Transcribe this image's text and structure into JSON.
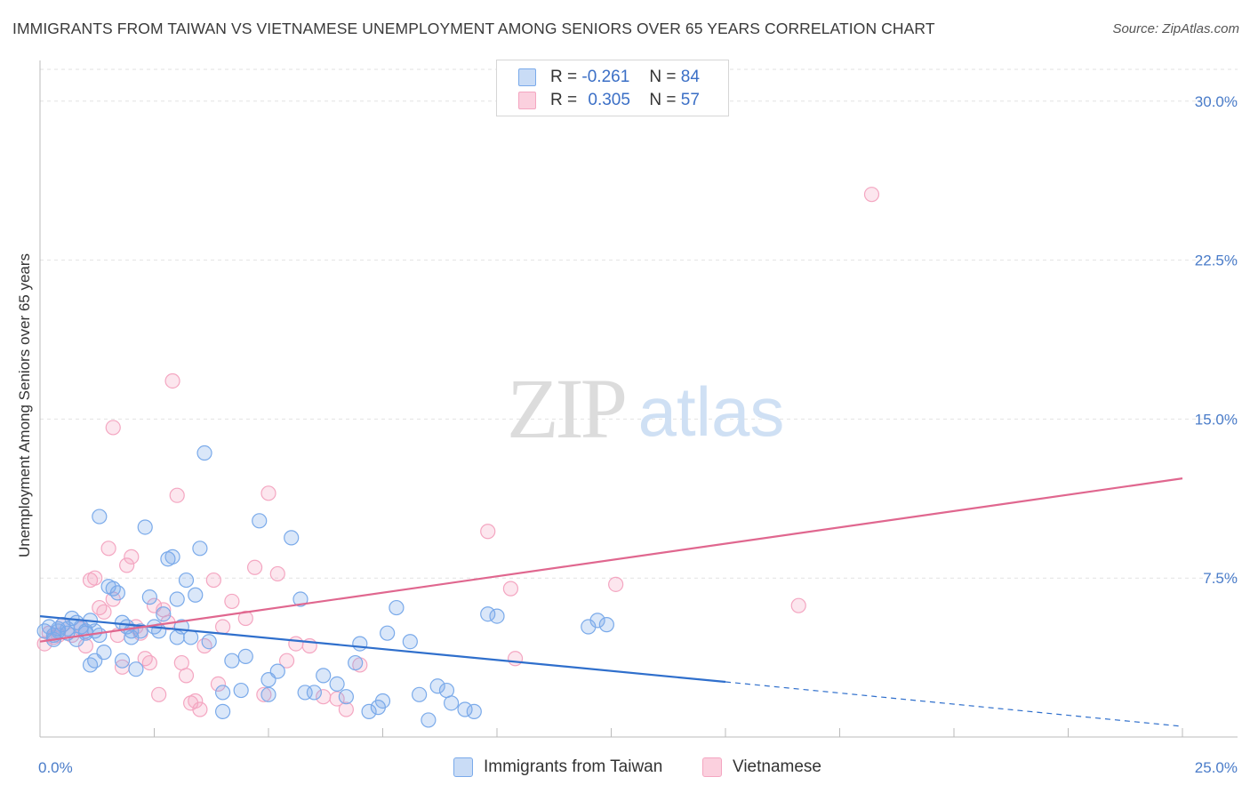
{
  "chart_data": {
    "type": "scatter",
    "title": "IMMIGRANTS FROM TAIWAN VS VIETNAMESE UNEMPLOYMENT AMONG SENIORS OVER 65 YEARS CORRELATION CHART",
    "source": "Source: ZipAtlas.com",
    "ylabel": "Unemployment Among Seniors over 65 years",
    "xlabel": "",
    "xlim": [
      0,
      25
    ],
    "ylim": [
      0,
      31.5
    ],
    "x_tick_labels": [
      "0.0%",
      "25.0%"
    ],
    "y_ticks": [
      7.5,
      15.0,
      22.5,
      30.0
    ],
    "y_tick_labels": [
      "7.5%",
      "15.0%",
      "22.5%",
      "30.0%"
    ],
    "watermark": "ZIPatlas",
    "legend": [
      {
        "r_label": "R =",
        "r_value": "-0.261",
        "n_label": "N =",
        "n_value": "84"
      },
      {
        "r_label": "R =",
        "r_value": "0.305",
        "n_label": "N =",
        "n_value": "57"
      }
    ],
    "series": [
      {
        "name": "Immigrants from Taiwan",
        "color": "#7aaaea",
        "line_color": "#2f6fcc",
        "trend": {
          "x0": 0,
          "y0": 5.7,
          "x1": 15,
          "y1": 2.6,
          "dashed_to_x": 25,
          "dashed_y": 0.5
        },
        "points": [
          [
            0.1,
            5.0
          ],
          [
            0.2,
            5.2
          ],
          [
            0.3,
            4.8
          ],
          [
            0.4,
            5.1
          ],
          [
            0.5,
            5.3
          ],
          [
            0.6,
            4.9
          ],
          [
            0.7,
            5.6
          ],
          [
            0.8,
            4.6
          ],
          [
            0.9,
            5.2
          ],
          [
            1.0,
            4.9
          ],
          [
            1.1,
            5.5
          ],
          [
            1.2,
            5.0
          ],
          [
            1.3,
            4.8
          ],
          [
            1.4,
            4.0
          ],
          [
            1.2,
            3.6
          ],
          [
            1.1,
            3.4
          ],
          [
            1.3,
            10.4
          ],
          [
            1.5,
            7.1
          ],
          [
            1.6,
            7.0
          ],
          [
            1.7,
            6.8
          ],
          [
            1.8,
            5.4
          ],
          [
            1.9,
            5.2
          ],
          [
            2.0,
            4.7
          ],
          [
            1.8,
            3.6
          ],
          [
            2.1,
            3.2
          ],
          [
            2.2,
            5.0
          ],
          [
            2.3,
            9.9
          ],
          [
            2.4,
            6.6
          ],
          [
            2.5,
            5.2
          ],
          [
            2.6,
            5.0
          ],
          [
            2.7,
            5.8
          ],
          [
            2.8,
            8.4
          ],
          [
            2.9,
            8.5
          ],
          [
            3.0,
            6.5
          ],
          [
            3.1,
            5.2
          ],
          [
            3.2,
            7.4
          ],
          [
            3.3,
            4.7
          ],
          [
            3.4,
            6.7
          ],
          [
            3.5,
            8.9
          ],
          [
            3.0,
            4.7
          ],
          [
            3.6,
            13.4
          ],
          [
            3.7,
            4.5
          ],
          [
            4.0,
            2.1
          ],
          [
            4.2,
            3.6
          ],
          [
            4.4,
            2.2
          ],
          [
            4.5,
            3.8
          ],
          [
            4.8,
            10.2
          ],
          [
            5.0,
            2.7
          ],
          [
            5.2,
            3.1
          ],
          [
            5.5,
            9.4
          ],
          [
            5.7,
            6.5
          ],
          [
            5.8,
            2.1
          ],
          [
            6.2,
            2.9
          ],
          [
            6.5,
            2.5
          ],
          [
            6.7,
            1.9
          ],
          [
            6.9,
            3.5
          ],
          [
            7.0,
            4.4
          ],
          [
            7.2,
            1.2
          ],
          [
            7.4,
            1.4
          ],
          [
            7.5,
            1.7
          ],
          [
            7.6,
            4.9
          ],
          [
            7.8,
            6.1
          ],
          [
            8.1,
            4.5
          ],
          [
            8.3,
            2.0
          ],
          [
            8.5,
            0.8
          ],
          [
            8.7,
            2.4
          ],
          [
            8.9,
            2.2
          ],
          [
            9.0,
            1.6
          ],
          [
            9.3,
            1.3
          ],
          [
            9.5,
            1.2
          ],
          [
            9.8,
            5.8
          ],
          [
            10.0,
            5.7
          ],
          [
            12.0,
            5.2
          ],
          [
            12.2,
            5.5
          ],
          [
            12.4,
            5.3
          ],
          [
            0.4,
            5.0
          ],
          [
            0.6,
            5.1
          ],
          [
            0.3,
            4.6
          ],
          [
            0.8,
            5.4
          ],
          [
            1.0,
            5.0
          ],
          [
            2.0,
            5.0
          ],
          [
            4.0,
            1.2
          ],
          [
            5.0,
            2.0
          ],
          [
            6.0,
            2.1
          ]
        ]
      },
      {
        "name": "Vietnamese",
        "color": "#f4a6c1",
        "line_color": "#e0678f",
        "trend": {
          "x0": 0,
          "y0": 4.5,
          "x1": 25,
          "y1": 12.2
        },
        "points": [
          [
            0.1,
            4.4
          ],
          [
            0.2,
            4.9
          ],
          [
            0.3,
            4.7
          ],
          [
            0.5,
            5.3
          ],
          [
            0.7,
            4.8
          ],
          [
            0.9,
            5.1
          ],
          [
            1.0,
            4.3
          ],
          [
            1.1,
            7.4
          ],
          [
            1.2,
            7.5
          ],
          [
            1.3,
            6.1
          ],
          [
            1.4,
            5.9
          ],
          [
            1.5,
            8.9
          ],
          [
            1.6,
            6.5
          ],
          [
            1.7,
            4.8
          ],
          [
            1.8,
            3.3
          ],
          [
            1.9,
            8.1
          ],
          [
            2.0,
            8.5
          ],
          [
            2.1,
            5.2
          ],
          [
            2.2,
            4.9
          ],
          [
            2.3,
            3.7
          ],
          [
            2.4,
            3.5
          ],
          [
            2.5,
            6.2
          ],
          [
            2.6,
            2.0
          ],
          [
            2.7,
            6.0
          ],
          [
            2.8,
            5.4
          ],
          [
            2.9,
            16.8
          ],
          [
            3.0,
            11.4
          ],
          [
            3.1,
            3.5
          ],
          [
            3.2,
            2.9
          ],
          [
            3.3,
            1.6
          ],
          [
            3.4,
            1.7
          ],
          [
            3.5,
            1.3
          ],
          [
            3.6,
            4.3
          ],
          [
            3.8,
            7.4
          ],
          [
            3.9,
            2.5
          ],
          [
            4.0,
            5.2
          ],
          [
            4.2,
            6.4
          ],
          [
            4.5,
            5.6
          ],
          [
            4.7,
            8.0
          ],
          [
            4.9,
            2.0
          ],
          [
            5.0,
            11.5
          ],
          [
            5.2,
            7.7
          ],
          [
            5.4,
            3.6
          ],
          [
            5.6,
            4.4
          ],
          [
            5.9,
            4.3
          ],
          [
            6.2,
            1.9
          ],
          [
            6.5,
            1.8
          ],
          [
            6.7,
            1.3
          ],
          [
            7.0,
            3.4
          ],
          [
            9.8,
            9.7
          ],
          [
            10.3,
            7.0
          ],
          [
            10.4,
            3.7
          ],
          [
            12.6,
            7.2
          ],
          [
            16.6,
            6.2
          ],
          [
            18.2,
            25.6
          ],
          [
            1.6,
            14.6
          ],
          [
            0.4,
            4.8
          ]
        ]
      }
    ]
  }
}
